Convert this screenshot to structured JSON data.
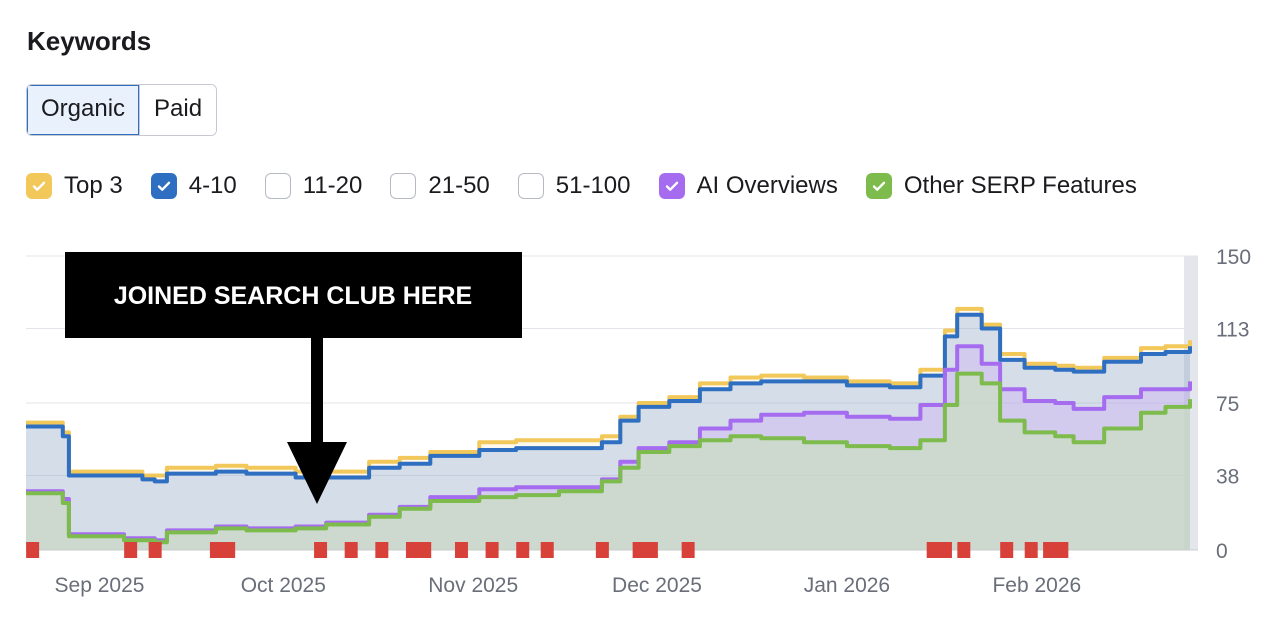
{
  "header": {
    "title": "Keywords"
  },
  "tabs": [
    {
      "label": "Organic",
      "active": true
    },
    {
      "label": "Paid",
      "active": false
    }
  ],
  "legend": [
    {
      "label": "Top 3",
      "checked": true,
      "color": "#f2c85b"
    },
    {
      "label": "4-10",
      "checked": true,
      "color": "#2f6fc1"
    },
    {
      "label": "11-20",
      "checked": false,
      "color": "#8fb3e6"
    },
    {
      "label": "21-50",
      "checked": false,
      "color": "#8fb3e6"
    },
    {
      "label": "51-100",
      "checked": false,
      "color": "#8fb3e6"
    },
    {
      "label": "AI Overviews",
      "checked": true,
      "color": "#a56cf0"
    },
    {
      "label": "Other SERP Features",
      "checked": true,
      "color": "#7dbb4c"
    }
  ],
  "annotation": {
    "text": "JOINED SEARCH CLUB HERE"
  },
  "chart_data": {
    "type": "area",
    "x_range": [
      "2025-08-20",
      "2026-02-26"
    ],
    "ylim": [
      0,
      150
    ],
    "y_ticks": [
      0,
      38,
      75,
      113,
      150
    ],
    "x_ticks": [
      {
        "date": "2025-09-01",
        "label": "Sep 2025"
      },
      {
        "date": "2025-10-01",
        "label": "Oct 2025"
      },
      {
        "date": "2025-11-01",
        "label": "Nov 2025"
      },
      {
        "date": "2025-12-01",
        "label": "Dec 2025"
      },
      {
        "date": "2026-01-01",
        "label": "Jan 2026"
      },
      {
        "date": "2026-02-01",
        "label": "Feb 2026"
      }
    ],
    "grid": true,
    "x": [
      "2025-08-20",
      "2025-08-26",
      "2025-08-27",
      "2025-09-05",
      "2025-09-08",
      "2025-09-10",
      "2025-09-12",
      "2025-09-20",
      "2025-09-25",
      "2025-10-03",
      "2025-10-08",
      "2025-10-15",
      "2025-10-20",
      "2025-10-25",
      "2025-11-02",
      "2025-11-08",
      "2025-11-15",
      "2025-11-22",
      "2025-11-25",
      "2025-11-28",
      "2025-12-03",
      "2025-12-08",
      "2025-12-13",
      "2025-12-18",
      "2025-12-25",
      "2026-01-01",
      "2026-01-08",
      "2026-01-13",
      "2026-01-17",
      "2026-01-19",
      "2026-01-23",
      "2026-01-26",
      "2026-01-30",
      "2026-02-04",
      "2026-02-07",
      "2026-02-12",
      "2026-02-18",
      "2026-02-22",
      "2026-02-26"
    ],
    "series": [
      {
        "name": "Top 3",
        "color": "#f2c85b",
        "values": [
          65,
          60,
          40,
          40,
          38,
          38,
          42,
          43,
          42,
          40,
          40,
          45,
          47,
          50,
          55,
          56,
          56,
          58,
          68,
          75,
          78,
          85,
          88,
          89,
          88,
          86,
          85,
          92,
          112,
          123,
          115,
          100,
          95,
          94,
          93,
          98,
          103,
          104,
          107
        ]
      },
      {
        "name": "4-10",
        "color": "#2f6fc1",
        "values": [
          63,
          58,
          38,
          38,
          36,
          35,
          39,
          40,
          39,
          37,
          37,
          42,
          44,
          48,
          51,
          52,
          52,
          55,
          66,
          73,
          76,
          82,
          85,
          86,
          86,
          84,
          83,
          89,
          109,
          120,
          113,
          97,
          93,
          92,
          91,
          96,
          100,
          101,
          104
        ]
      },
      {
        "name": "AI Overviews",
        "color": "#a56cf0",
        "values": [
          30,
          26,
          8,
          6,
          6,
          5,
          10,
          12,
          11,
          12,
          14,
          18,
          22,
          27,
          31,
          32,
          32,
          36,
          45,
          52,
          55,
          62,
          66,
          69,
          70,
          68,
          67,
          74,
          92,
          104,
          95,
          82,
          76,
          75,
          72,
          78,
          82,
          82,
          86
        ]
      },
      {
        "name": "Other SERP Features",
        "color": "#7dbb4c",
        "values": [
          29,
          24,
          7,
          5,
          5,
          4,
          9,
          11,
          10,
          11,
          13,
          17,
          21,
          25,
          27,
          28,
          30,
          35,
          42,
          50,
          53,
          56,
          58,
          57,
          55,
          53,
          52,
          56,
          74,
          90,
          85,
          66,
          60,
          58,
          55,
          62,
          70,
          73,
          77
        ]
      }
    ],
    "markers": [
      "2025-08-21",
      "2025-09-06",
      "2025-09-10",
      "2025-09-20",
      "2025-09-22",
      "2025-10-07",
      "2025-10-12",
      "2025-10-17",
      "2025-10-22",
      "2025-10-24",
      "2025-10-30",
      "2025-11-04",
      "2025-11-09",
      "2025-11-13",
      "2025-11-22",
      "2025-11-28",
      "2025-11-30",
      "2025-12-06",
      "2026-01-15",
      "2026-01-17",
      "2026-01-20",
      "2026-01-27",
      "2026-01-31",
      "2026-02-03",
      "2026-02-05"
    ]
  }
}
